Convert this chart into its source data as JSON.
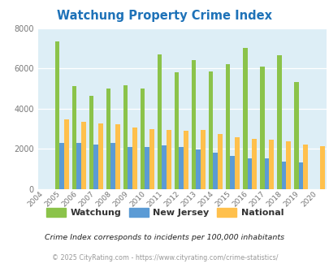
{
  "title": "Watchung Property Crime Index",
  "years": [
    2004,
    2005,
    2006,
    2007,
    2008,
    2009,
    2010,
    2011,
    2012,
    2013,
    2014,
    2015,
    2016,
    2017,
    2018,
    2019,
    2020
  ],
  "watchung": [
    0,
    7350,
    5100,
    4650,
    5000,
    5150,
    5000,
    6700,
    5800,
    6400,
    5850,
    6200,
    7000,
    6100,
    6650,
    5300,
    0
  ],
  "new_jersey": [
    0,
    2300,
    2280,
    2220,
    2280,
    2080,
    2080,
    2180,
    2080,
    1960,
    1800,
    1660,
    1530,
    1540,
    1360,
    1310,
    0
  ],
  "national": [
    0,
    3450,
    3350,
    3250,
    3200,
    3050,
    2980,
    2920,
    2900,
    2920,
    2730,
    2560,
    2500,
    2460,
    2380,
    2220,
    2120
  ],
  "watchung_color": "#8bc34a",
  "nj_color": "#5b9bd5",
  "national_color": "#ffc04c",
  "bg_color": "#ddeef6",
  "title_color": "#1e72b8",
  "footer1": "Crime Index corresponds to incidents per 100,000 inhabitants",
  "footer2": "© 2025 CityRating.com - https://www.cityrating.com/crime-statistics/",
  "legend_labels": [
    "Watchung",
    "New Jersey",
    "National"
  ]
}
